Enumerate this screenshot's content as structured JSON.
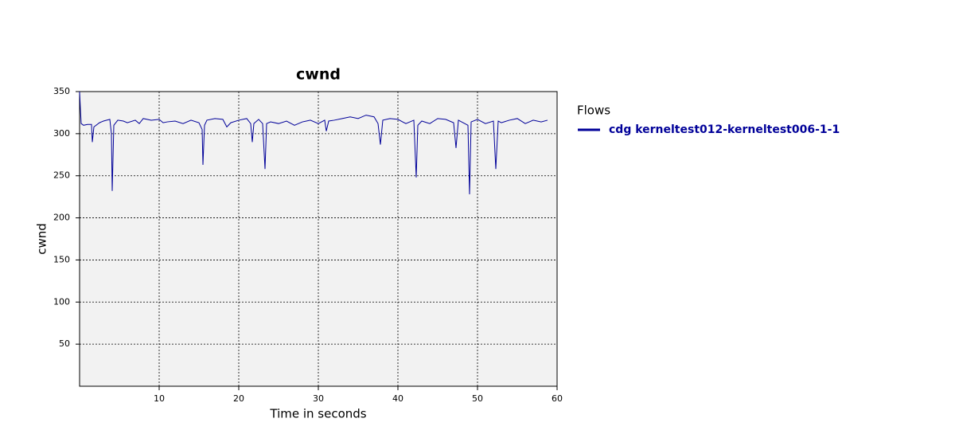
{
  "chart_data": {
    "type": "line",
    "title": "cwnd",
    "x_label": "Time in seconds",
    "y_label": "cwnd",
    "legend_title": "Flows",
    "legend_position": "right",
    "grid": true,
    "xlim": [
      0,
      60
    ],
    "xticks": [
      10,
      20,
      30,
      40,
      50,
      60
    ],
    "ylim": [
      0,
      350
    ],
    "yticks": [
      50,
      100,
      150,
      200,
      250,
      300,
      350
    ],
    "x": [
      0,
      0.1,
      0.2,
      0.5,
      1.0,
      1.5,
      1.6,
      1.8,
      2.5,
      3.0,
      3.8,
      4.0,
      4.1,
      4.3,
      4.8,
      5.5,
      6,
      7,
      7.5,
      8,
      9,
      10,
      10.5,
      11,
      12,
      13,
      14,
      15,
      15.4,
      15.5,
      15.7,
      16,
      17,
      18,
      18.5,
      19,
      20,
      21,
      21.5,
      21.7,
      21.9,
      22.5,
      23.0,
      23.3,
      23.5,
      24,
      25,
      26,
      27,
      28,
      29,
      30,
      30.8,
      31.0,
      31.3,
      32,
      33,
      34,
      35,
      36,
      37,
      37.5,
      37.8,
      38.1,
      39,
      40,
      41,
      42,
      42.3,
      42.5,
      43,
      44,
      45,
      46,
      47,
      47.3,
      47.6,
      48,
      48.8,
      49.0,
      49.2,
      50,
      51,
      52,
      52.3,
      52.6,
      53,
      54,
      55,
      56,
      57,
      58,
      58.8
    ],
    "series": [
      {
        "name": "cdg kerneltest012-kerneltest006-1-1",
        "color": "#000099",
        "values": [
          350,
          330,
          312,
          310,
          311,
          311,
          290,
          308,
          313,
          315,
          317,
          300,
          232,
          310,
          316,
          315,
          313,
          316,
          312,
          318,
          316,
          317,
          313,
          314,
          315,
          312,
          316,
          313,
          305,
          263,
          310,
          316,
          318,
          317,
          308,
          313,
          316,
          318,
          312,
          290,
          312,
          317,
          312,
          258,
          312,
          314,
          312,
          315,
          310,
          314,
          316,
          312,
          316,
          303,
          315,
          316,
          318,
          320,
          318,
          322,
          320,
          312,
          287,
          316,
          318,
          317,
          312,
          316,
          248,
          310,
          315,
          312,
          318,
          317,
          313,
          283,
          316,
          314,
          310,
          228,
          314,
          317,
          312,
          315,
          258,
          315,
          313,
          316,
          318,
          312,
          316,
          314,
          316
        ]
      }
    ]
  }
}
